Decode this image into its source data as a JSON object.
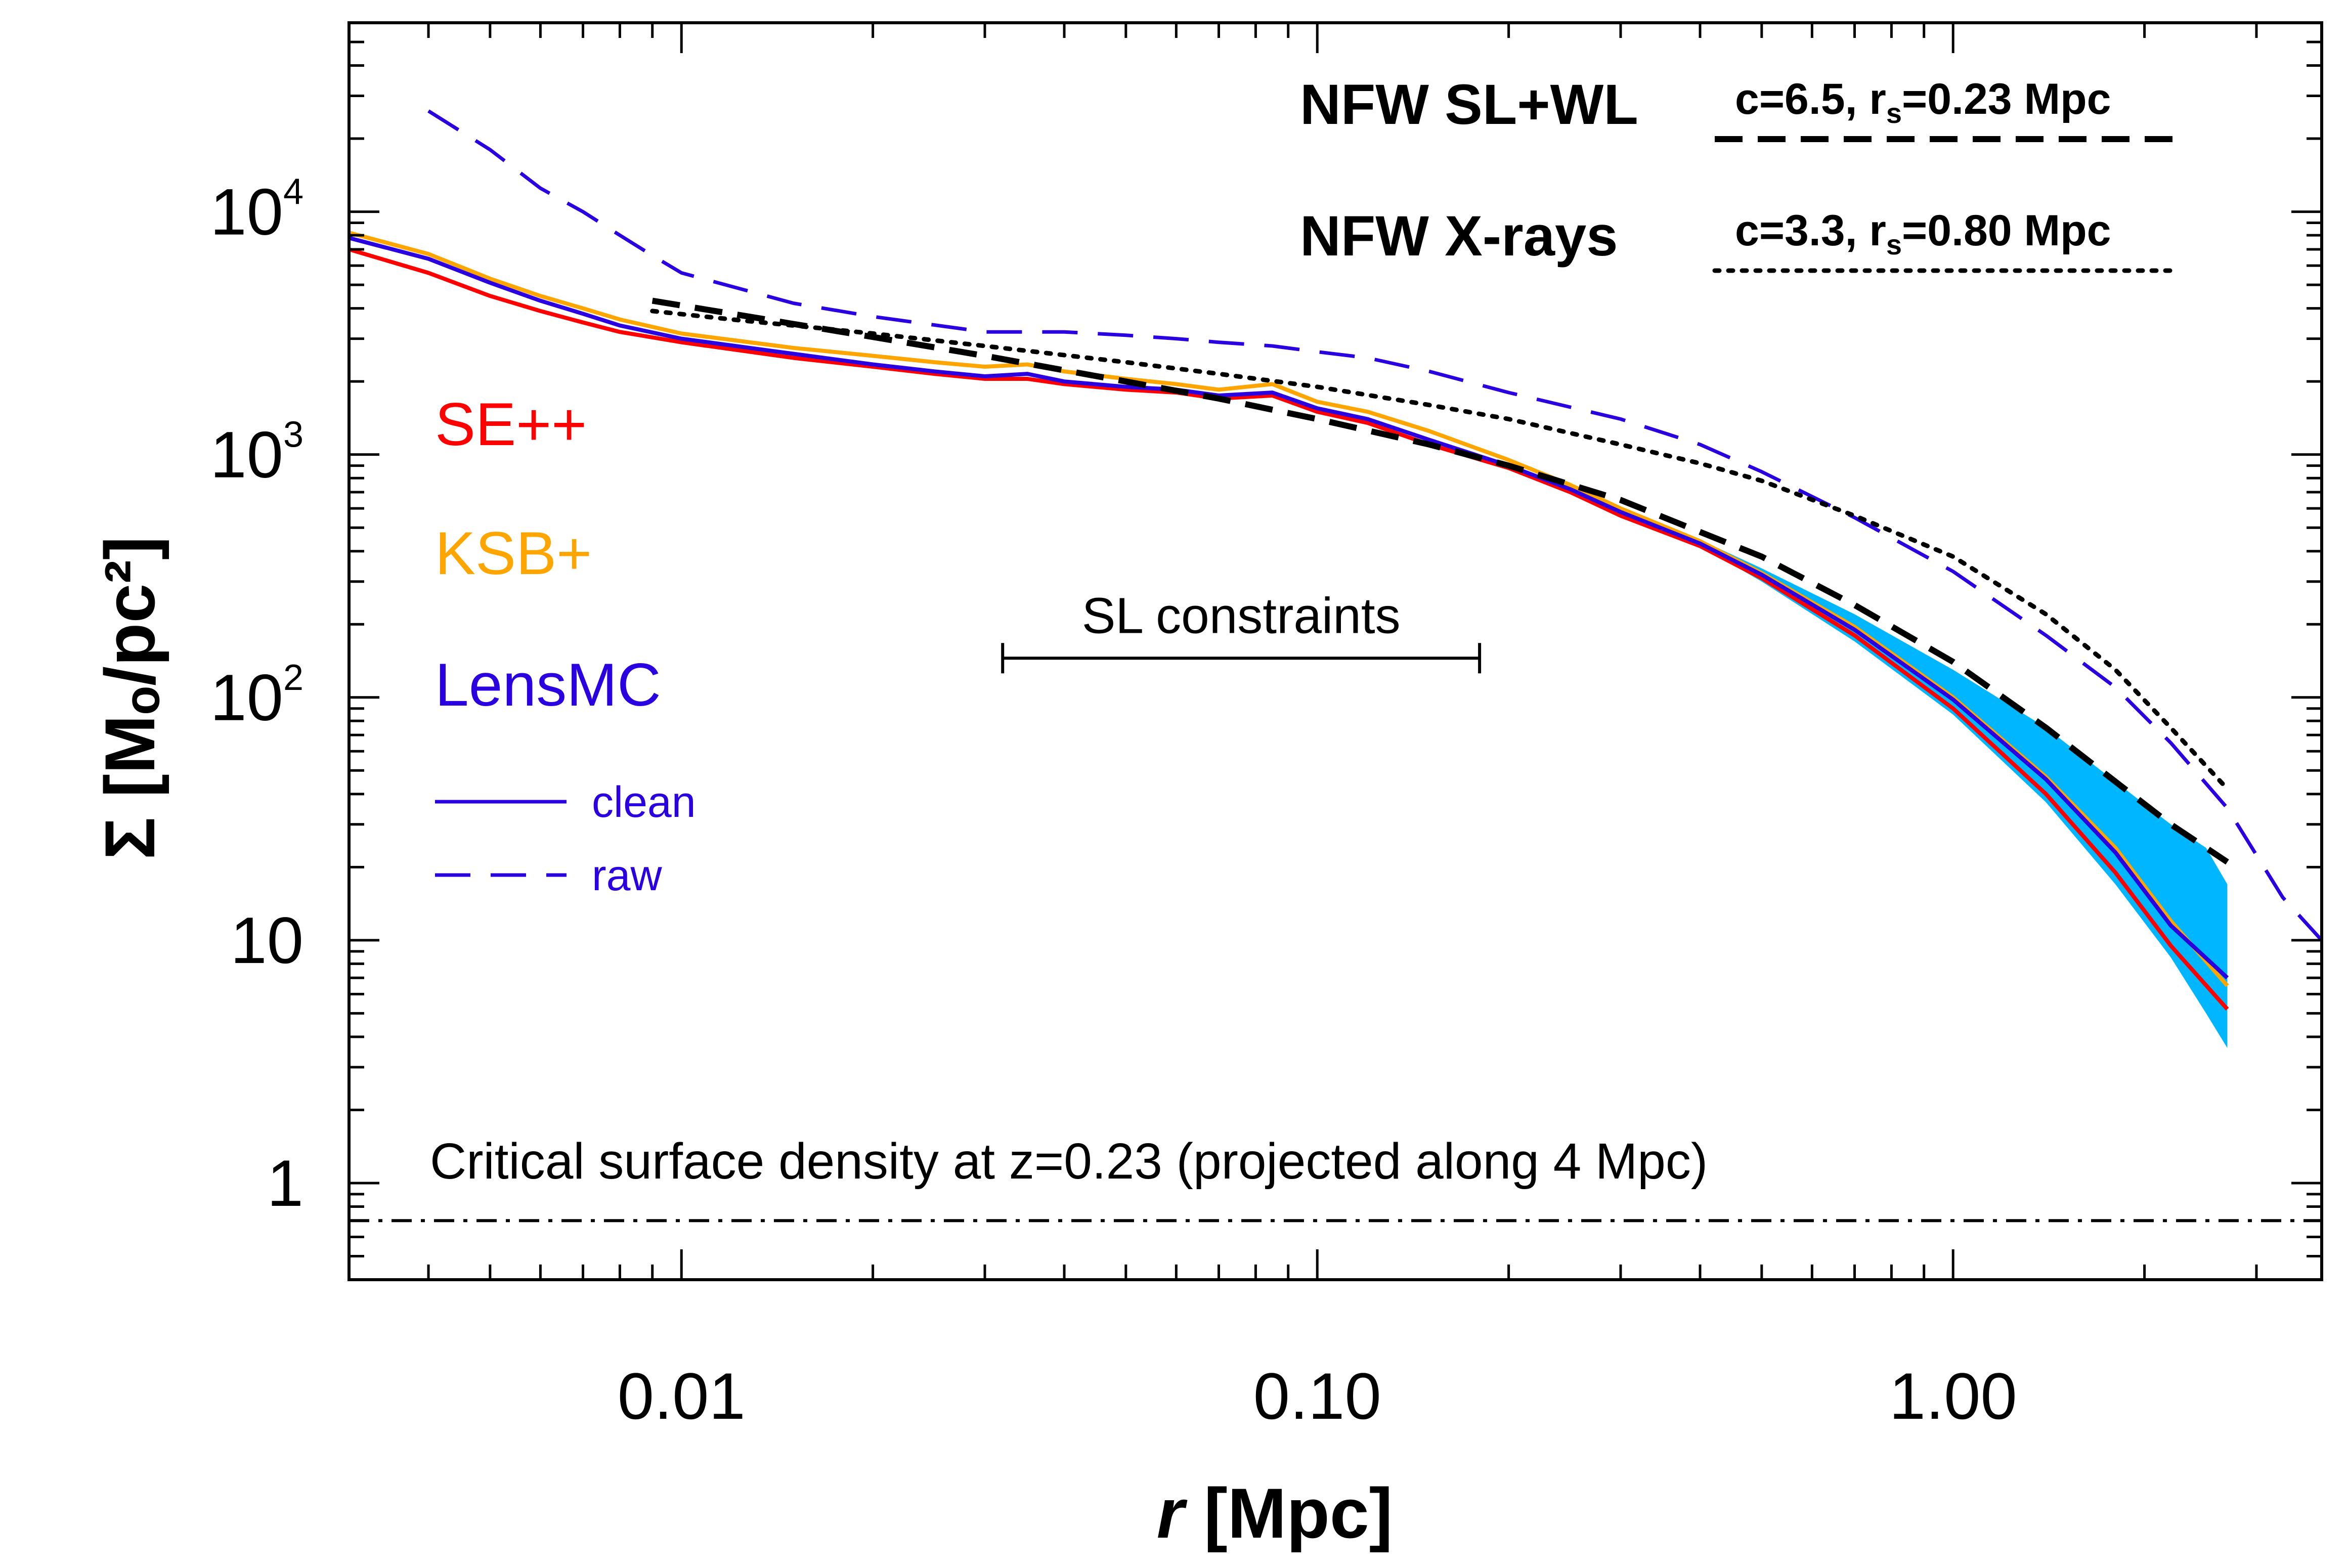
{
  "chart_data": {
    "type": "line",
    "xlabel_italic": "r",
    "xlabel_unit": "[Mpc]",
    "ylabel": "Σ [Mₒ/pc²]",
    "xscale": "log",
    "yscale": "log",
    "xlim": [
      0.003,
      3.8
    ],
    "ylim": [
      0.4,
      60000
    ],
    "xticks_major": [
      {
        "value": 0.01,
        "label": "0.01"
      },
      {
        "value": 0.1,
        "label": "0.10"
      },
      {
        "value": 1.0,
        "label": "1.00"
      }
    ],
    "yticks_major": [
      {
        "value": 1,
        "label": "1"
      },
      {
        "value": 10,
        "label": "10"
      },
      {
        "value": 100,
        "label": "10",
        "sup": "2"
      },
      {
        "value": 1000,
        "label": "10",
        "sup": "3"
      },
      {
        "value": 10000,
        "label": "10",
        "sup": "4"
      }
    ],
    "legend_left": [
      {
        "label": "SE++",
        "color": "#ff0000"
      },
      {
        "label": "KSB+",
        "color": "#ffa500"
      },
      {
        "label": "LensMC",
        "color": "#2a00e0"
      }
    ],
    "legend_styles": [
      {
        "label": "clean",
        "dash": "solid",
        "color": "#2a00e0"
      },
      {
        "label": "raw",
        "dash": "dashed",
        "color": "#2a00e0"
      }
    ],
    "legend_models": [
      {
        "label": "NFW SL+WL",
        "params": "c=6.5, r",
        "sub": "s",
        "params_tail": "=0.23 Mpc",
        "dash": "dashed",
        "color": "#000000"
      },
      {
        "label": "NFW X-rays",
        "params": "c=3.3, r",
        "sub": "s",
        "params_tail": "=0.80 Mpc",
        "dash": "dotted",
        "color": "#000000"
      }
    ],
    "annotations": {
      "sl_constraints": {
        "label": "SL constraints",
        "x_range": [
          0.032,
          0.18
        ],
        "y": 145
      },
      "critical": {
        "label": "Critical surface density at z=0.23 (projected along 4 Mpc)",
        "y": 0.7
      }
    },
    "series": [
      {
        "name": "SE++",
        "style": "solid",
        "color": "#ff0000",
        "x": [
          0.003,
          0.004,
          0.005,
          0.006,
          0.007,
          0.008,
          0.01,
          0.015,
          0.02,
          0.025,
          0.03,
          0.035,
          0.04,
          0.05,
          0.06,
          0.07,
          0.085,
          0.1,
          0.12,
          0.15,
          0.2,
          0.25,
          0.3,
          0.4,
          0.5,
          0.7,
          1.0,
          1.4,
          1.8,
          2.2,
          2.7
        ],
        "y": [
          7000,
          5600,
          4500,
          3900,
          3500,
          3200,
          2900,
          2500,
          2300,
          2150,
          2050,
          2050,
          1950,
          1850,
          1800,
          1700,
          1750,
          1500,
          1350,
          1100,
          880,
          700,
          560,
          420,
          310,
          180,
          90,
          40,
          19,
          9.5,
          5.2
        ]
      },
      {
        "name": "KSB+",
        "style": "solid",
        "color": "#ffa500",
        "x": [
          0.003,
          0.004,
          0.005,
          0.006,
          0.007,
          0.008,
          0.01,
          0.015,
          0.02,
          0.025,
          0.03,
          0.035,
          0.04,
          0.05,
          0.06,
          0.07,
          0.085,
          0.1,
          0.12,
          0.15,
          0.2,
          0.25,
          0.3,
          0.4,
          0.5,
          0.7,
          1.0,
          1.4,
          1.8,
          2.2,
          2.7
        ],
        "y": [
          8200,
          6700,
          5300,
          4500,
          4000,
          3600,
          3150,
          2750,
          2550,
          2400,
          2300,
          2350,
          2200,
          2050,
          1950,
          1850,
          1950,
          1650,
          1500,
          1250,
          950,
          750,
          600,
          440,
          325,
          195,
          100,
          47,
          24,
          12,
          6.5
        ]
      },
      {
        "name": "LensMC clean",
        "style": "solid",
        "color": "#2a00e0",
        "x": [
          0.003,
          0.004,
          0.005,
          0.006,
          0.007,
          0.008,
          0.01,
          0.015,
          0.02,
          0.025,
          0.03,
          0.035,
          0.04,
          0.05,
          0.06,
          0.07,
          0.085,
          0.1,
          0.12,
          0.15,
          0.2,
          0.25,
          0.3,
          0.4,
          0.5,
          0.7,
          1.0,
          1.4,
          1.8,
          2.2,
          2.7
        ],
        "y": [
          7800,
          6400,
          5100,
          4300,
          3800,
          3400,
          3000,
          2600,
          2350,
          2200,
          2100,
          2150,
          2000,
          1900,
          1850,
          1750,
          1800,
          1550,
          1400,
          1150,
          900,
          720,
          580,
          430,
          320,
          190,
          98,
          46,
          23,
          11.5,
          7.0
        ]
      },
      {
        "name": "LensMC raw",
        "style": "dashed",
        "color": "#2a00e0",
        "x": [
          0.004,
          0.005,
          0.006,
          0.007,
          0.008,
          0.009,
          0.01,
          0.015,
          0.02,
          0.03,
          0.04,
          0.05,
          0.06,
          0.07,
          0.085,
          0.1,
          0.12,
          0.15,
          0.2,
          0.3,
          0.4,
          0.5,
          0.7,
          1.0,
          1.4,
          1.8,
          2.2,
          2.7,
          3.3,
          3.8
        ],
        "y": [
          26000,
          18000,
          12500,
          10000,
          8000,
          6600,
          5600,
          4200,
          3700,
          3200,
          3200,
          3100,
          3000,
          2900,
          2800,
          2650,
          2500,
          2200,
          1800,
          1400,
          1100,
          850,
          550,
          330,
          180,
          110,
          65,
          35,
          15,
          10
        ]
      },
      {
        "name": "NFW SL+WL",
        "style": "dashed-black",
        "color": "#000000",
        "x": [
          0.009,
          0.012,
          0.015,
          0.02,
          0.03,
          0.05,
          0.07,
          0.1,
          0.15,
          0.2,
          0.3,
          0.4,
          0.5,
          0.7,
          1.0,
          1.4,
          1.8,
          2.2,
          2.7
        ],
        "y": [
          4300,
          3800,
          3450,
          3050,
          2550,
          2000,
          1700,
          1400,
          1100,
          900,
          650,
          480,
          380,
          240,
          140,
          75,
          45,
          30,
          21
        ]
      },
      {
        "name": "NFW X-rays",
        "style": "dotted-black",
        "color": "#000000",
        "x": [
          0.009,
          0.012,
          0.015,
          0.02,
          0.03,
          0.05,
          0.07,
          0.1,
          0.15,
          0.2,
          0.3,
          0.4,
          0.5,
          0.7,
          1.0,
          1.4,
          1.8,
          2.2,
          2.7
        ],
        "y": [
          3900,
          3600,
          3400,
          3150,
          2800,
          2400,
          2150,
          1900,
          1600,
          1400,
          1100,
          920,
          780,
          560,
          380,
          220,
          130,
          75,
          42
        ]
      },
      {
        "name": "Critical surface density",
        "style": "dashdot-black",
        "color": "#000000",
        "x": [
          0.003,
          3.8
        ],
        "y": [
          0.7,
          0.7
        ]
      }
    ],
    "band": {
      "name": "uncertainty",
      "color": "#00b7ff",
      "x": [
        0.42,
        0.5,
        0.7,
        1.0,
        1.4,
        1.8,
        2.2,
        2.5,
        2.7
      ],
      "y_low": [
        390,
        300,
        170,
        85,
        37,
        17,
        8.5,
        5.0,
        3.6
      ],
      "y_high": [
        420,
        340,
        220,
        130,
        75,
        45,
        30,
        24,
        17
      ]
    }
  }
}
